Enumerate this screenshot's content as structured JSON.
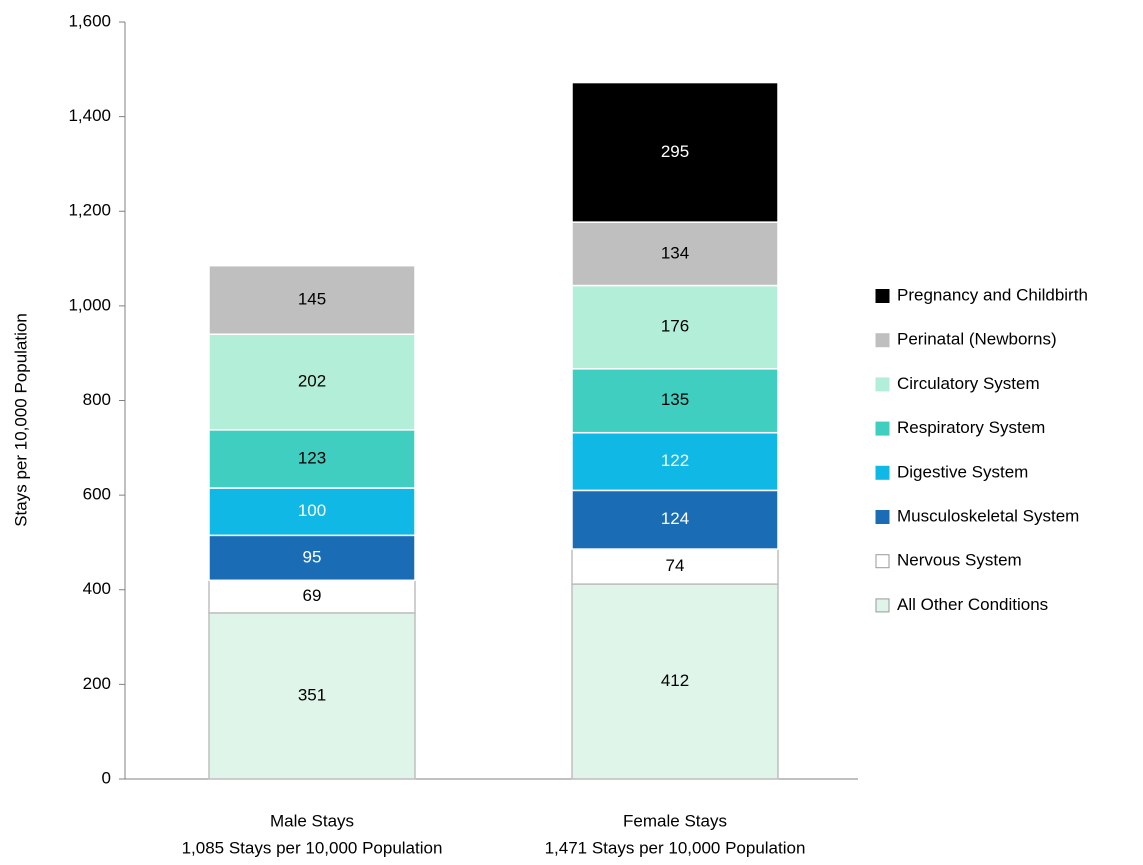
{
  "chart_data": {
    "type": "bar",
    "stacked": true,
    "ylabel": "Stays per 10,000 Population",
    "ylim": [
      0,
      1600
    ],
    "yticks": [
      "0",
      "200",
      "400",
      "600",
      "800",
      "1,000",
      "1,200",
      "1,400",
      "1,600"
    ],
    "ytick_values": [
      0,
      200,
      400,
      600,
      800,
      1000,
      1200,
      1400,
      1600
    ],
    "grid": false,
    "legend_position": "right",
    "categories": [
      {
        "line1": "Male Stays",
        "line2": "1,085 Stays per 10,000 Population"
      },
      {
        "line1": "Female Stays",
        "line2": "1,471 Stays per 10,000 Population"
      }
    ],
    "series": [
      {
        "name": "All Other Conditions",
        "values": [
          351,
          412
        ],
        "color": "#e0f5e9",
        "stroke": "#bfbfbf",
        "label_color": "#000000"
      },
      {
        "name": "Nervous System",
        "values": [
          69,
          74
        ],
        "color": "#ffffff",
        "stroke": "#bfbfbf",
        "label_color": "#000000"
      },
      {
        "name": "Musculoskeletal System",
        "values": [
          95,
          124
        ],
        "color": "#1a6db5",
        "stroke": "#ffffff",
        "label_color": "#ffffff"
      },
      {
        "name": "Digestive System",
        "values": [
          100,
          122
        ],
        "color": "#10b8e6",
        "stroke": "#ffffff",
        "label_color": "#ffffff"
      },
      {
        "name": "Respiratory System",
        "values": [
          123,
          135
        ],
        "color": "#3fcebf",
        "stroke": "#ffffff",
        "label_color": "#000000"
      },
      {
        "name": "Circulatory System",
        "values": [
          202,
          176
        ],
        "color": "#b3eed9",
        "stroke": "#ffffff",
        "label_color": "#000000"
      },
      {
        "name": "Perinatal (Newborns)",
        "values": [
          145,
          134
        ],
        "color": "#bfbfbf",
        "stroke": "#ffffff",
        "label_color": "#000000"
      },
      {
        "name": "Pregnancy and Childbirth",
        "values": [
          0,
          295
        ],
        "color": "#000000",
        "stroke": "#ffffff",
        "label_color": "#ffffff"
      }
    ]
  }
}
